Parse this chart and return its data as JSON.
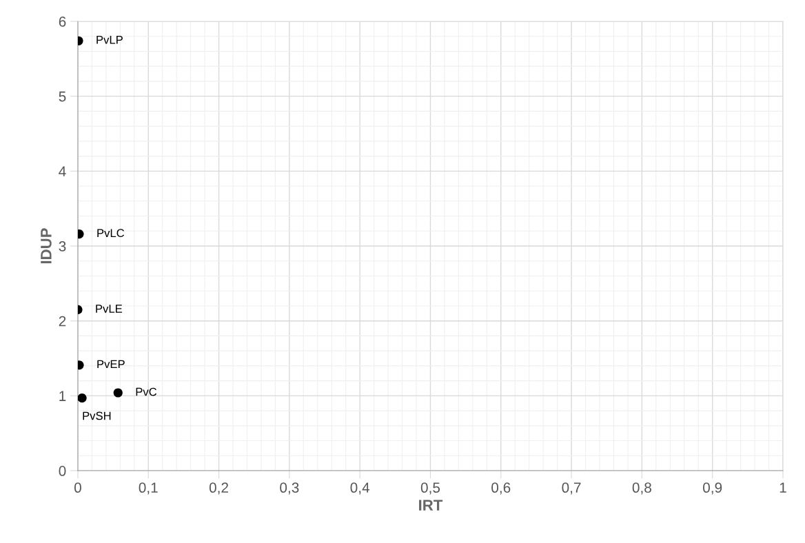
{
  "chart_data": {
    "type": "scatter",
    "xlabel": "IRT",
    "ylabel": "IDUP",
    "x": [
      0.001,
      0.002,
      0.0,
      0.002,
      0.006,
      0.057
    ],
    "values": [
      5.74,
      3.16,
      2.15,
      1.41,
      0.97,
      1.04
    ],
    "color": "#000000",
    "marker": "circle",
    "grid": true,
    "xlim": [
      0,
      1
    ],
    "xticks": [
      0,
      {
        "value": 0.1,
        "label": "0,1"
      },
      {
        "value": 0.2,
        "label": "0,2"
      },
      {
        "value": 0.3,
        "label": "0,3"
      },
      {
        "value": 0.4,
        "label": "0,4"
      },
      {
        "value": 0.5,
        "label": "0,5"
      },
      {
        "value": 0.6,
        "label": "0,6"
      },
      {
        "value": 0.7,
        "label": "0,7"
      },
      {
        "value": 0.8,
        "label": "0,8"
      },
      {
        "value": 0.9,
        "label": "0,9"
      },
      1
    ],
    "ylim": [
      0,
      6
    ],
    "yticks": [
      0,
      1,
      2,
      3,
      4,
      5,
      6
    ],
    "annotations": [
      {
        "text": "PvLP",
        "x": 0.001,
        "y": 5.74
      },
      {
        "text": "PvLC",
        "x": 0.002,
        "y": 3.16
      },
      {
        "text": "PvLE",
        "x": 0.0,
        "y": 2.15
      },
      {
        "text": "PvEP",
        "x": 0.002,
        "y": 1.41
      },
      {
        "text": "PvSH",
        "x": 0.006,
        "y": 0.97
      },
      {
        "text": "PvC",
        "x": 0.057,
        "y": 1.04
      }
    ]
  }
}
